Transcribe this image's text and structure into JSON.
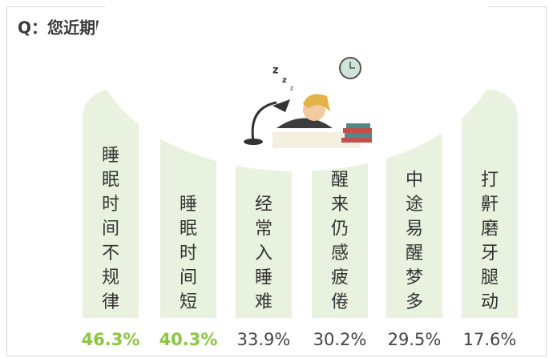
{
  "title": "Q：您近期睡眠有过哪些问题?",
  "items": [
    {
      "label": "睡眠时间不规律",
      "value": "46.3%",
      "color": "#8cc540",
      "bold": true
    },
    {
      "label": "睡眠时间短",
      "value": "40.3%",
      "color": "#8cc540",
      "bold": true
    },
    {
      "label": "经常入睡难",
      "value": "33.9%",
      "color": "#444444",
      "bold": false
    },
    {
      "label": "醒来仍感疲倦",
      "value": "30.2%",
      "color": "#444444",
      "bold": false
    },
    {
      "label": "中途易醒梦多",
      "value": "29.5%",
      "color": "#444444",
      "bold": false
    },
    {
      "label": "打鼾磨牙腿动",
      "value": "17.6%",
      "color": "#444444",
      "bold": false
    }
  ]
}
